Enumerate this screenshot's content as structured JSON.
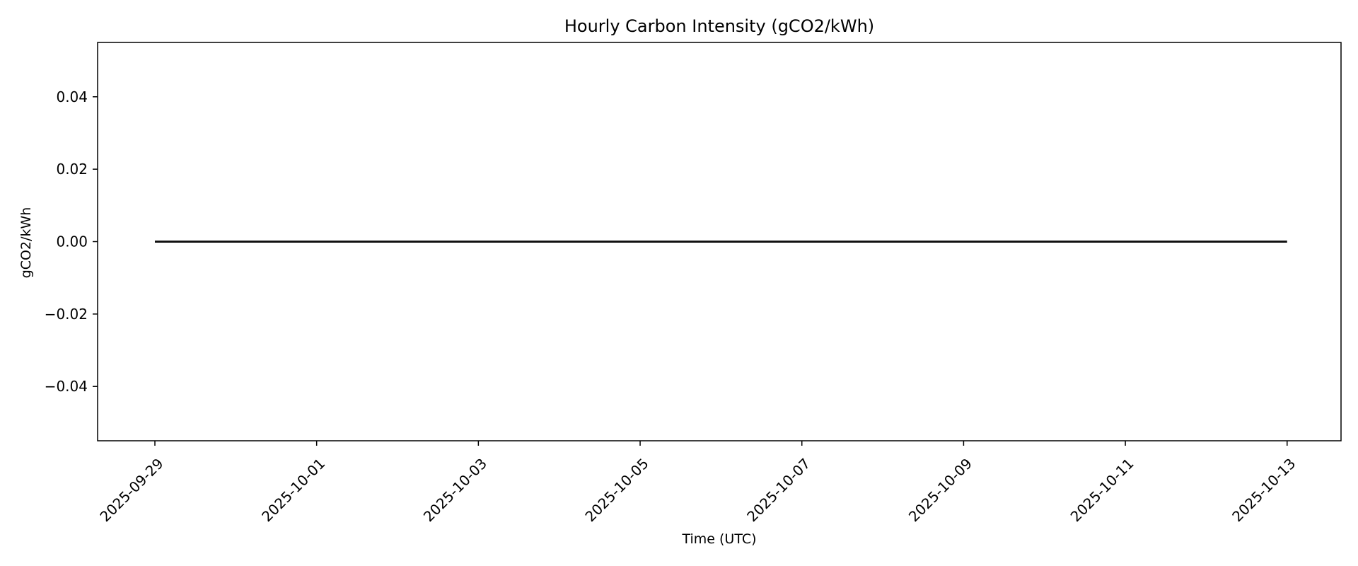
{
  "chart_data": {
    "type": "line",
    "title": "Hourly Carbon Intensity (gCO2/kWh)",
    "xlabel": "Time (UTC)",
    "ylabel": "gCO2/kWh",
    "x_range": [
      "2025-09-28T07:00:00",
      "2025-10-13T16:00:00"
    ],
    "ylim": [
      -0.055,
      0.055
    ],
    "x_ticks": [
      "2025-09-29",
      "2025-10-01",
      "2025-10-03",
      "2025-10-05",
      "2025-10-07",
      "2025-10-09",
      "2025-10-11",
      "2025-10-13"
    ],
    "y_ticks": [
      0.04,
      0.02,
      0.0,
      -0.02,
      -0.04
    ],
    "y_tick_labels": [
      "0.04",
      "0.02",
      "0.00",
      "−0.02",
      "−0.04"
    ],
    "grid": false,
    "series": [
      {
        "color": "#111111",
        "points": [
          {
            "x": "2025-09-29T00:00:00",
            "y": 0
          },
          {
            "x": "2025-10-13T00:00:00",
            "y": 0
          }
        ]
      }
    ]
  }
}
